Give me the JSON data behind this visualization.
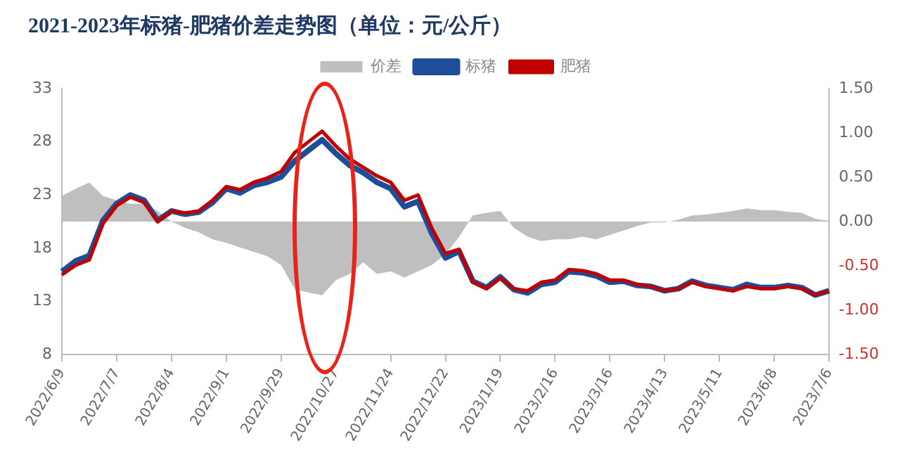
{
  "chart_data": {
    "type": "line",
    "title": "2021-2023年标猪-肥猪价差走势图（单位：元/公斤）",
    "categories": [
      "2022/6/9",
      null,
      null,
      null,
      "2022/7/7",
      null,
      null,
      null,
      "2022/8/4",
      null,
      null,
      null,
      "2022/9/1",
      null,
      null,
      null,
      "2022/9/29",
      null,
      null,
      null,
      "2022/10/27",
      null,
      null,
      null,
      "2022/11/24",
      null,
      null,
      null,
      "2022/12/22",
      null,
      null,
      null,
      "2023/1/19",
      null,
      null,
      null,
      "2023/2/16",
      null,
      null,
      null,
      "2023/3/16",
      null,
      null,
      null,
      "2023/4/13",
      null,
      null,
      null,
      "2023/5/11",
      null,
      null,
      null,
      "2023/6/8",
      null,
      null,
      null,
      "2023/7/6"
    ],
    "series": [
      {
        "name": "价差",
        "type": "area",
        "axis": "y2",
        "color": "#bfbfbf",
        "values": [
          0.29,
          0.37,
          0.44,
          0.29,
          0.24,
          0.2,
          0.2,
          0.12,
          0,
          -0.07,
          -0.12,
          -0.2,
          -0.24,
          -0.29,
          -0.34,
          -0.39,
          -0.49,
          -0.76,
          -0.8,
          -0.83,
          -0.66,
          -0.59,
          -0.46,
          -0.59,
          -0.56,
          -0.63,
          -0.56,
          -0.49,
          -0.37,
          -0.17,
          0.07,
          0.1,
          0.12,
          -0.07,
          -0.17,
          -0.22,
          -0.2,
          -0.2,
          -0.17,
          -0.2,
          -0.15,
          -0.1,
          -0.05,
          -0.01,
          -0.01,
          0.02,
          0.07,
          0.08,
          0.1,
          0.12,
          0.15,
          0.13,
          0.13,
          0.11,
          0.1,
          0.03,
          0.01
        ]
      },
      {
        "name": "标猪",
        "type": "line",
        "color": "#1f4e99",
        "values": [
          15.8,
          16.8,
          17.3,
          20.6,
          22.2,
          23.0,
          22.5,
          20.6,
          21.5,
          21.2,
          21.4,
          22.3,
          23.6,
          23.2,
          23.9,
          24.2,
          24.7,
          26.2,
          27.2,
          28.2,
          26.9,
          25.8,
          25.1,
          24.2,
          23.6,
          21.9,
          22.4,
          19.4,
          17.1,
          17.7,
          14.9,
          14.3,
          15.3,
          14.1,
          13.8,
          14.6,
          14.8,
          15.8,
          15.7,
          15.4,
          14.8,
          14.9,
          14.5,
          14.4,
          14.0,
          14.2,
          14.9,
          14.5,
          14.3,
          14.1,
          14.6,
          14.3,
          14.3,
          14.5,
          14.3,
          13.6,
          14.0
        ]
      },
      {
        "name": "肥猪",
        "type": "line",
        "color": "#c00000",
        "values": [
          15.5,
          16.4,
          16.9,
          20.3,
          22.0,
          22.8,
          22.3,
          20.5,
          21.5,
          21.3,
          21.5,
          22.5,
          23.8,
          23.5,
          24.2,
          24.6,
          25.2,
          27.0,
          28.0,
          29.0,
          27.6,
          26.4,
          25.6,
          24.8,
          24.2,
          22.5,
          23.0,
          19.9,
          17.5,
          17.9,
          14.8,
          14.2,
          15.2,
          14.2,
          14.0,
          14.8,
          15.0,
          16.0,
          15.9,
          15.6,
          15.0,
          15.0,
          14.6,
          14.4,
          14.0,
          14.2,
          14.8,
          14.4,
          14.2,
          14.0,
          14.4,
          14.2,
          14.2,
          14.4,
          14.2,
          13.6,
          14.0
        ]
      }
    ],
    "ylim": [
      8,
      33
    ],
    "yticks": [
      8,
      13,
      18,
      23,
      28,
      33
    ],
    "y2lim": [
      -1.5,
      1.5
    ],
    "y2ticks": [
      {
        "value": -1.5,
        "label": "-1.50"
      },
      {
        "value": -1,
        "label": "-1.00"
      },
      {
        "value": -0.5,
        "label": "-0.50"
      },
      {
        "value": 0,
        "label": "0.00"
      },
      {
        "value": 0.5,
        "label": "0.50"
      },
      {
        "value": 1,
        "label": "1.00"
      },
      {
        "value": 1.5,
        "label": "1.50"
      }
    ],
    "grid": false,
    "legend": "top",
    "marker": "none",
    "line_style": "solid"
  }
}
